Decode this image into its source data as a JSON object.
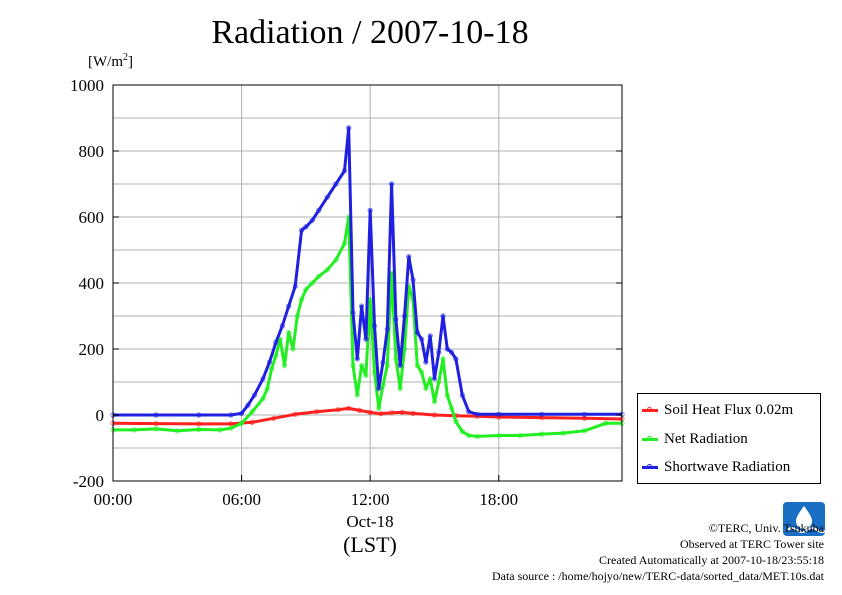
{
  "page": {
    "title": "Radiation / 2007-10-18",
    "unit_main": "[W/m",
    "unit_sup": "2",
    "unit_close": "]",
    "date_label": "Oct-18",
    "tz_label": "(LST)"
  },
  "credits": [
    "©TERC, Univ. Tsukuba",
    "Observed at TERC Tower site",
    "Created Automatically at 2007-10-18/23:55:18",
    "Data source : /home/hojyo/new/TERC-data/sorted_data/MET.10s.dat"
  ],
  "colors": {
    "soil": "#ff2020",
    "net": "#22ee22",
    "sw": "#2020e0",
    "grid": "#b0b0b0",
    "logo": "#1a6fc4"
  },
  "chart_data": {
    "type": "line",
    "title": "Radiation / 2007-10-18",
    "ylabel": "[W/m2]",
    "xlabel": "(LST)",
    "xlim": [
      0,
      23.75
    ],
    "ylim": [
      -200,
      1000
    ],
    "yticks": [
      -200,
      0,
      200,
      400,
      600,
      800,
      1000
    ],
    "xticks": [
      {
        "value": 0,
        "label": "00:00"
      },
      {
        "value": 6,
        "label": "06:00"
      },
      {
        "value": 12,
        "label": "12:00"
      },
      {
        "value": 18,
        "label": "18:00"
      }
    ],
    "grid": true,
    "legend_position": "bottom-right outside",
    "series": [
      {
        "name": "Soil Heat Flux 0.02m",
        "color": "#ff2020",
        "x": [
          0,
          2,
          4,
          5.5,
          6.5,
          7.5,
          8.5,
          9.5,
          10.5,
          11,
          11.5,
          12,
          12.5,
          13,
          13.5,
          14,
          15,
          16,
          17,
          18,
          20,
          22,
          23.75
        ],
        "y": [
          -25,
          -26,
          -27,
          -27,
          -22,
          -10,
          2,
          10,
          16,
          20,
          14,
          8,
          4,
          7,
          8,
          5,
          0,
          -2,
          -4,
          -6,
          -8,
          -10,
          -12
        ]
      },
      {
        "name": "Net Radiation",
        "color": "#22ee22",
        "x": [
          0,
          1,
          2,
          3,
          4,
          5,
          5.5,
          6,
          6.5,
          7,
          7.2,
          7.4,
          7.6,
          7.8,
          8,
          8.2,
          8.4,
          8.6,
          8.8,
          9,
          9.3,
          9.6,
          10,
          10.4,
          10.8,
          11,
          11.2,
          11.4,
          11.6,
          11.8,
          12,
          12.2,
          12.4,
          12.6,
          12.8,
          13,
          13.2,
          13.4,
          13.6,
          13.8,
          14,
          14.2,
          14.4,
          14.6,
          14.8,
          15,
          15.2,
          15.4,
          15.6,
          15.8,
          16,
          16.3,
          16.6,
          17,
          18,
          19,
          20,
          21,
          22,
          23,
          23.75
        ],
        "y": [
          -45,
          -45,
          -42,
          -48,
          -44,
          -45,
          -40,
          -25,
          10,
          50,
          80,
          140,
          180,
          230,
          150,
          250,
          200,
          300,
          350,
          380,
          400,
          420,
          440,
          470,
          520,
          600,
          150,
          60,
          150,
          120,
          350,
          130,
          20,
          90,
          150,
          430,
          170,
          80,
          200,
          390,
          350,
          150,
          130,
          80,
          110,
          40,
          100,
          170,
          60,
          20,
          -20,
          -50,
          -62,
          -65,
          -62,
          -62,
          -58,
          -55,
          -48,
          -25,
          -25
        ]
      },
      {
        "name": "Shortwave Radiation",
        "color": "#2020e0",
        "x": [
          0,
          2,
          4,
          5.5,
          6,
          6.3,
          6.6,
          7,
          7.3,
          7.6,
          7.9,
          8.2,
          8.5,
          8.8,
          9,
          9.3,
          9.6,
          10,
          10.4,
          10.8,
          11,
          11.2,
          11.4,
          11.6,
          11.8,
          12,
          12.2,
          12.4,
          12.6,
          12.8,
          13,
          13.2,
          13.4,
          13.6,
          13.8,
          14,
          14.2,
          14.4,
          14.6,
          14.8,
          15,
          15.2,
          15.4,
          15.6,
          15.8,
          16,
          16.3,
          16.6,
          17,
          18,
          20,
          22,
          23.75
        ],
        "y": [
          0,
          0,
          0,
          0,
          5,
          30,
          60,
          110,
          160,
          220,
          270,
          330,
          390,
          560,
          570,
          590,
          620,
          660,
          700,
          740,
          870,
          310,
          170,
          330,
          230,
          620,
          270,
          80,
          160,
          260,
          700,
          290,
          150,
          300,
          480,
          410,
          250,
          230,
          160,
          240,
          110,
          190,
          300,
          200,
          190,
          170,
          60,
          10,
          2,
          2,
          2,
          2,
          2
        ]
      }
    ]
  }
}
